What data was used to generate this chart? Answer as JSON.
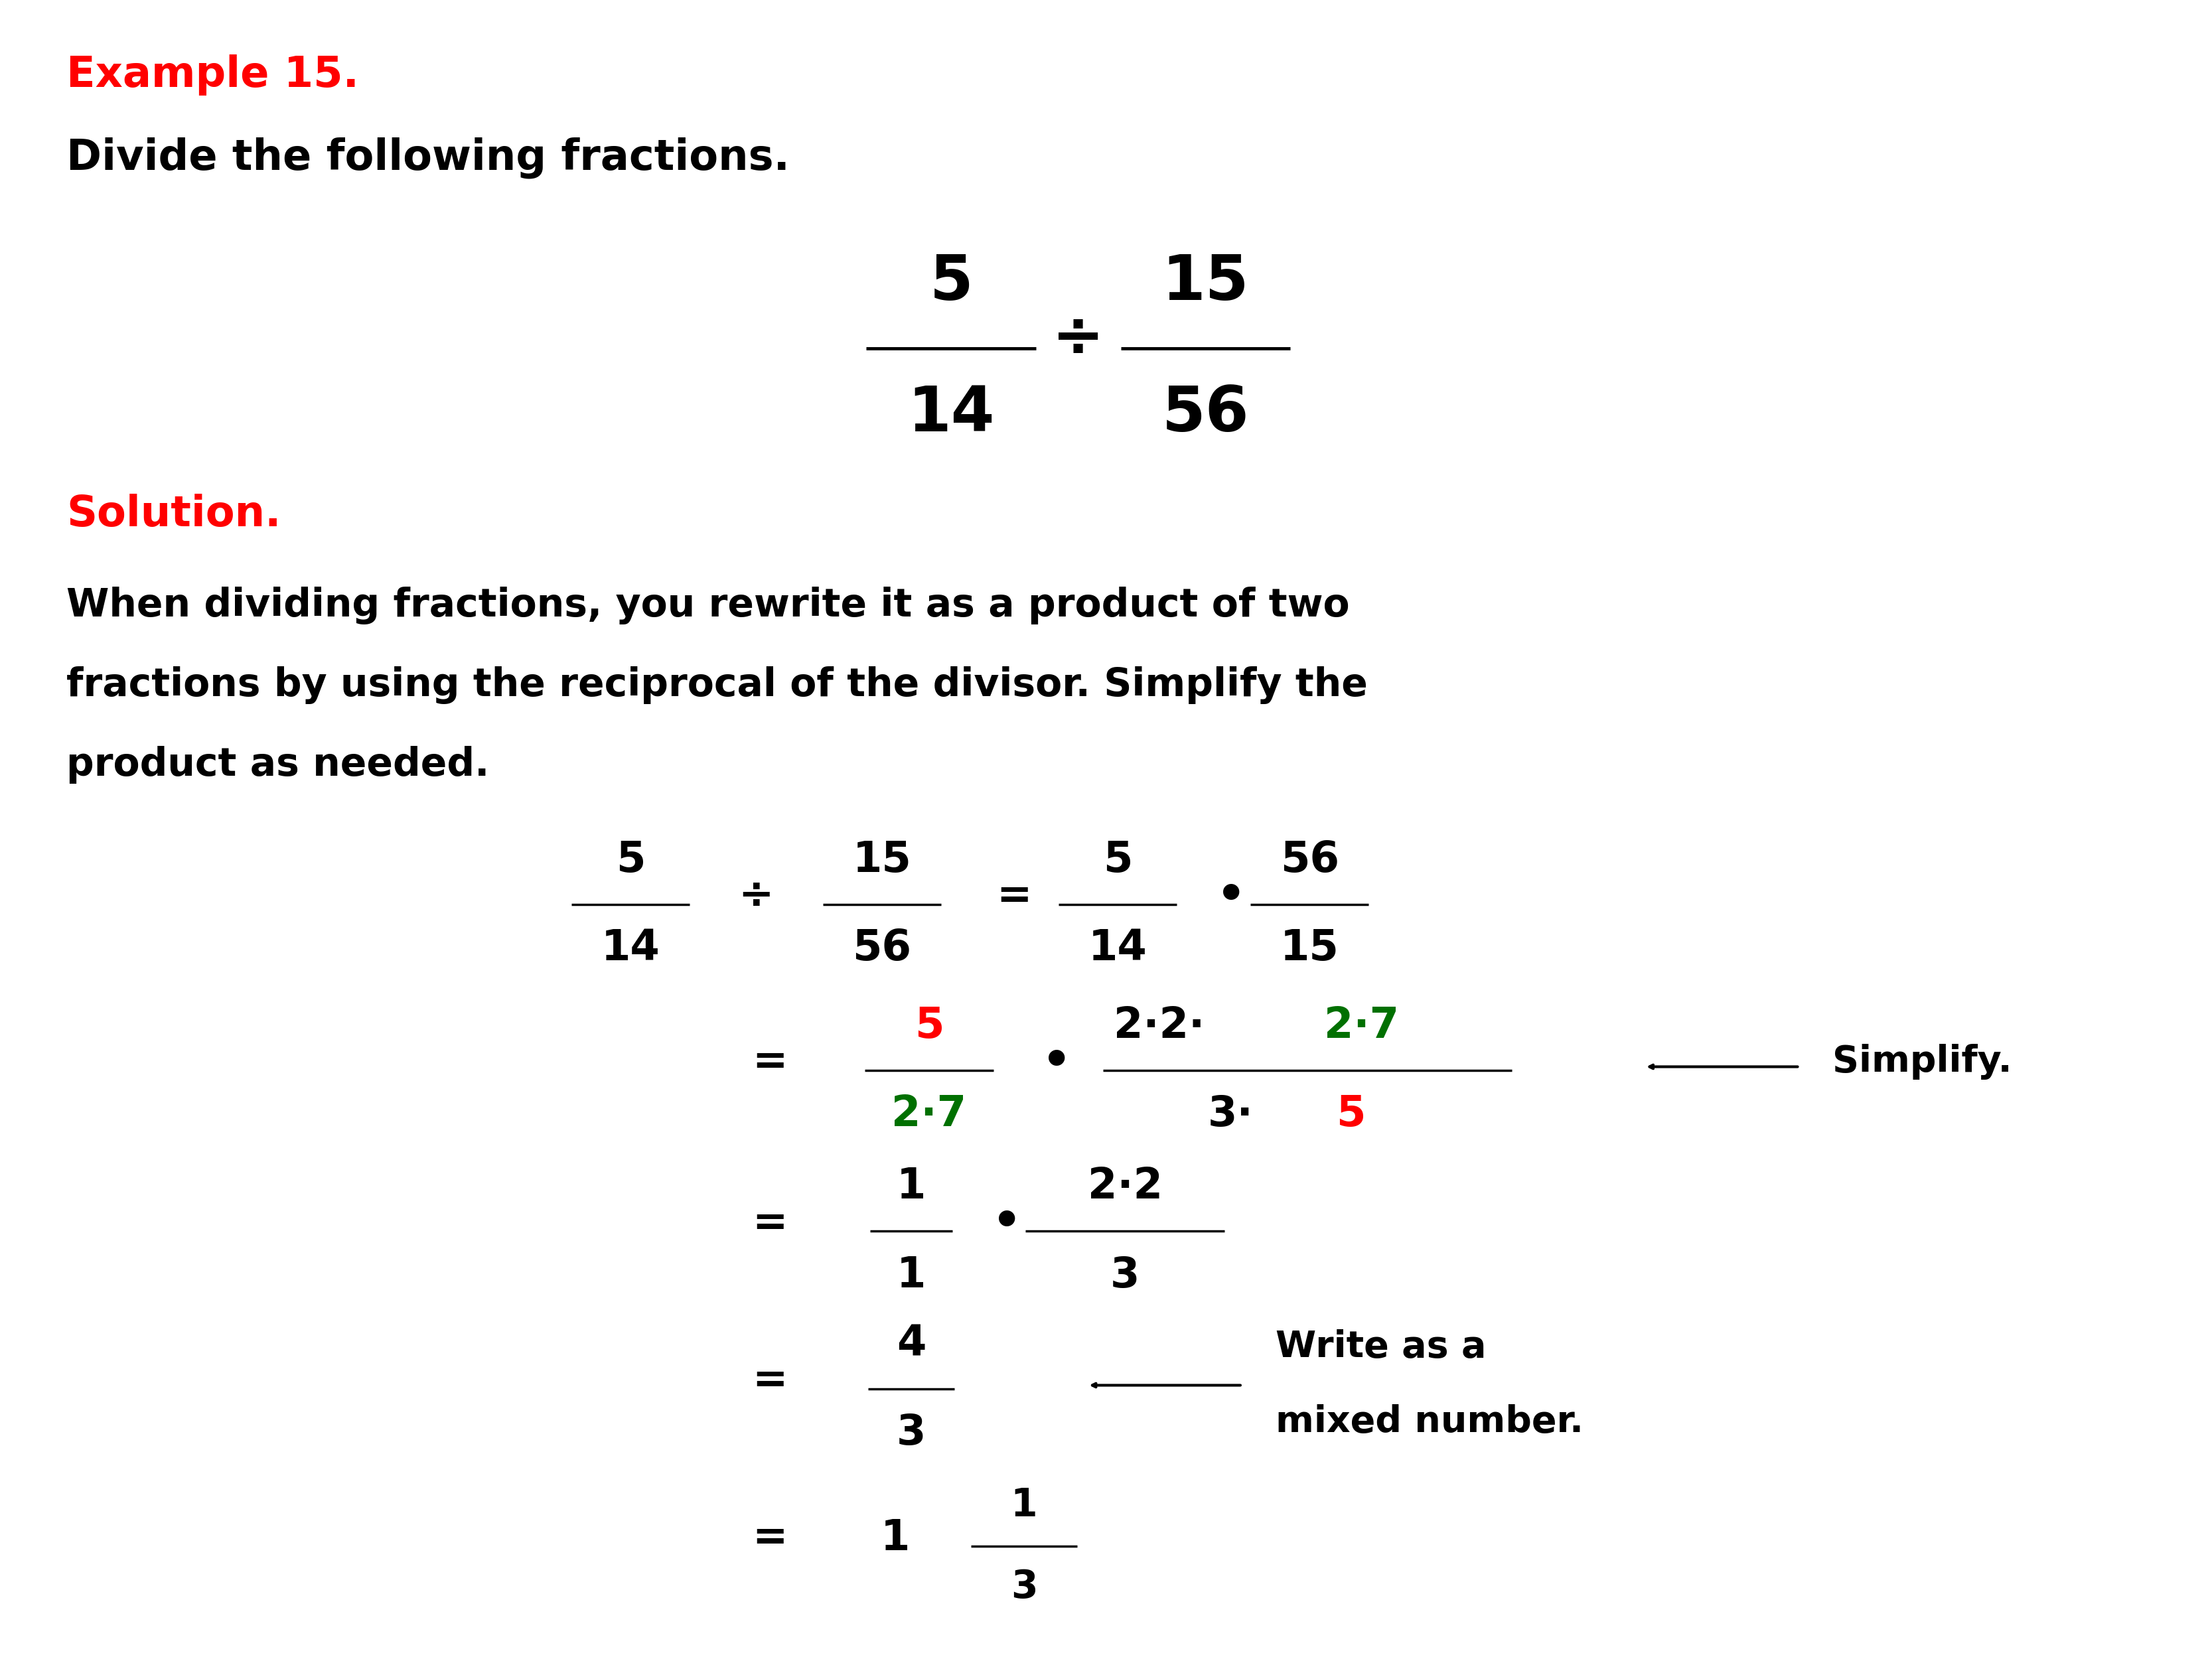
{
  "background_color": "#ffffff",
  "fig_width": 33.33,
  "fig_height": 25.0,
  "title_example": "Example 15.",
  "title_subtitle": "Divide the following fractions.",
  "solution_label": "Solution.",
  "solution_text_line1": "When dividing fractions, you rewrite it as a product of two",
  "solution_text_line2": "fractions by using the reciprocal of the divisor. Simplify the",
  "solution_text_line3": "product as needed.",
  "red_color": "#ff0000",
  "black_color": "#000000",
  "green_color": "#007000",
  "annot_simplify": "Simplify.",
  "annot_write_as_a": "Write as a",
  "annot_mixed_number": "mixed number."
}
